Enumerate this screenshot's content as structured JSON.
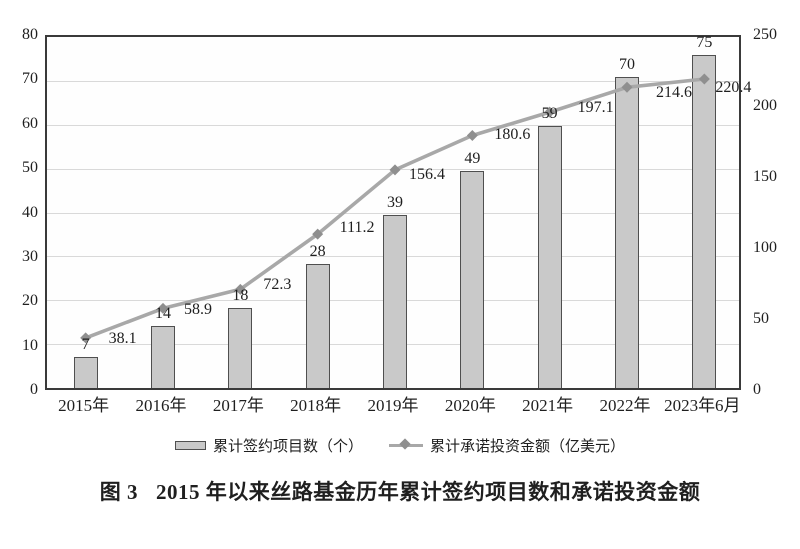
{
  "figure": {
    "caption": {
      "prefix": "图 3",
      "title": "2015 年以来丝路基金历年累计签约项目数和承诺投资金额"
    }
  },
  "legend": {
    "bar_label": "累计签约项目数（个）",
    "line_label": "累计承诺投资金额（亿美元）"
  },
  "chart_data": {
    "type": "bar",
    "subtype": "bar+line dual-axis combo",
    "title": "图 3 2015 年以来丝路基金历年累计签约项目数和承诺投资金额",
    "categories": [
      "2015年",
      "2016年",
      "2017年",
      "2018年",
      "2019年",
      "2020年",
      "2021年",
      "2022年",
      "2023年6月"
    ],
    "series": [
      {
        "name": "累计签约项目数（个）",
        "type": "bar",
        "axis": "left",
        "values": [
          7,
          14,
          18,
          28,
          39,
          49,
          59,
          70,
          75
        ]
      },
      {
        "name": "累计承诺投资金额（亿美元）",
        "type": "line",
        "axis": "right",
        "values": [
          38.1,
          58.9,
          72.3,
          111.2,
          156.4,
          180.6,
          197.1,
          214.6,
          220.4
        ]
      }
    ],
    "left_axis": {
      "min": 0,
      "max": 80,
      "ticks": [
        0,
        10,
        20,
        30,
        40,
        50,
        60,
        70,
        80
      ]
    },
    "right_axis": {
      "min": 0,
      "max": 250,
      "ticks": [
        0,
        50,
        100,
        150,
        200,
        250
      ]
    },
    "grid": "horizontal gridlines at left-axis intervals",
    "legend_position": "bottom",
    "data_labels": true
  },
  "colors": {
    "bar_fill": "#c9c9c9",
    "bar_border": "#4f4f4f",
    "line": "#a8a8a8",
    "marker": "#8f8f8f",
    "grid": "#d9d9d9",
    "plot_border": "#3a3a3a",
    "text": "#1f1f1f"
  }
}
